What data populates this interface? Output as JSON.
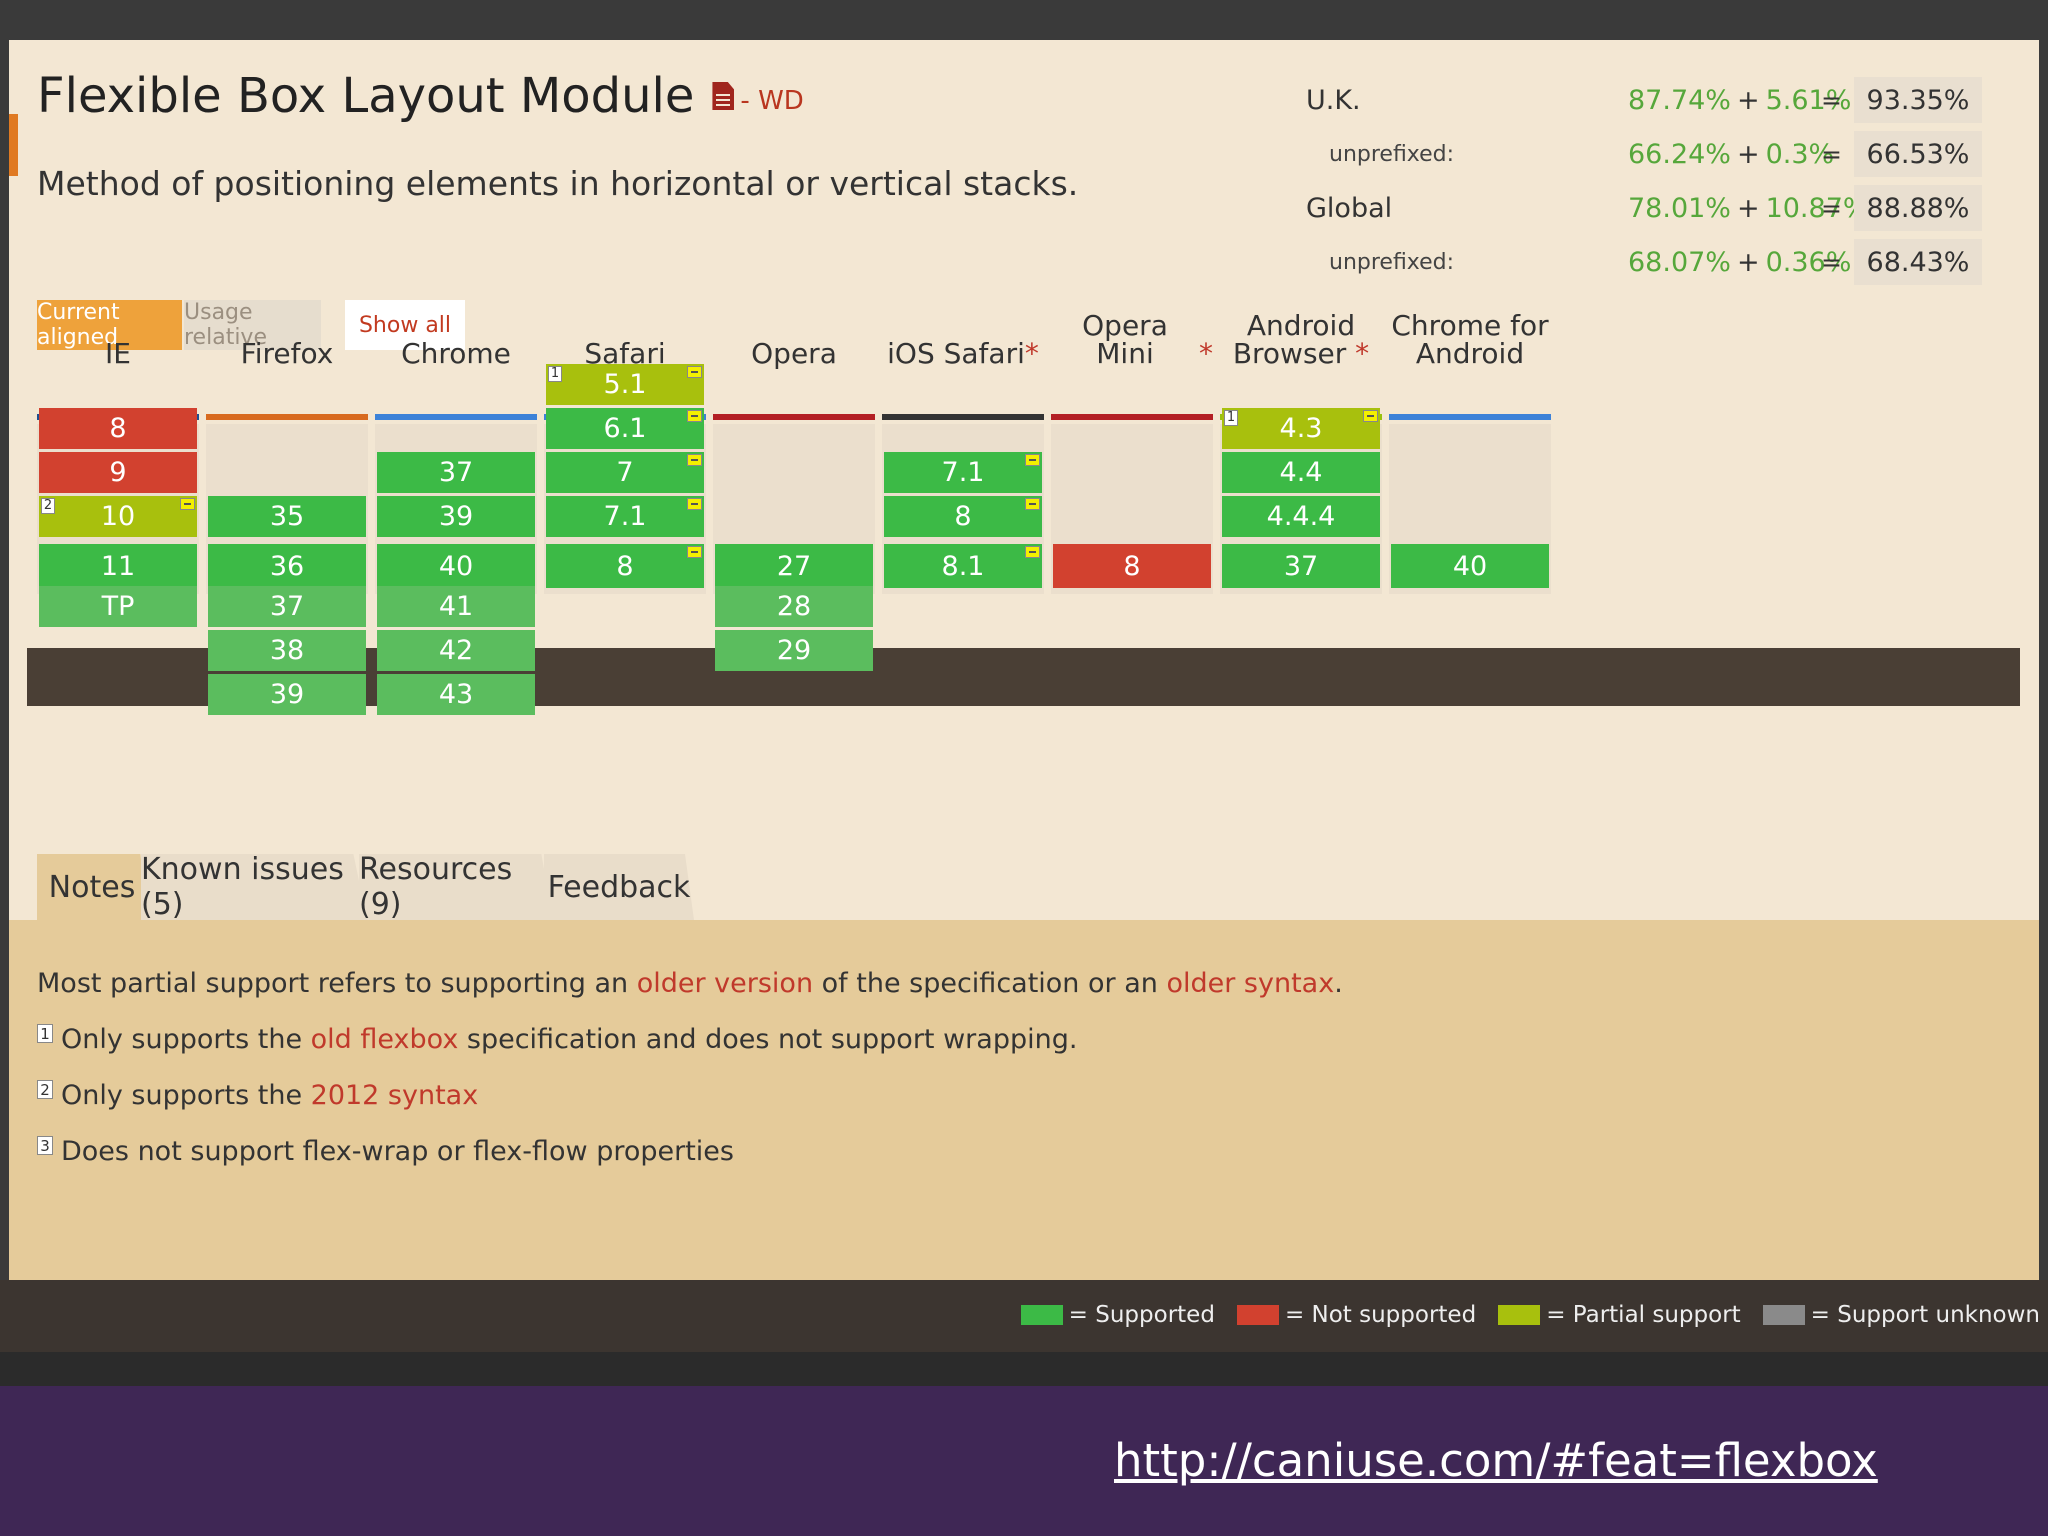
{
  "feature": {
    "title": "Flexible Box Layout Module",
    "status": "- WD",
    "description": "Method of positioning elements in horizontal or vertical stacks."
  },
  "stats": [
    {
      "label": "U.K.",
      "supported": "87.74%",
      "partial": "5.61%",
      "total": "93.35%",
      "sub": false
    },
    {
      "label": "unprefixed:",
      "supported": "66.24%",
      "partial": "0.3%",
      "total": "66.53%",
      "sub": true
    },
    {
      "label": "Global",
      "supported": "78.01%",
      "partial": "10.87%",
      "total": "88.88%",
      "sub": false
    },
    {
      "label": "unprefixed:",
      "supported": "68.07%",
      "partial": "0.36%",
      "total": "68.43%",
      "sub": true
    }
  ],
  "stat_symbols": {
    "plus": "+",
    "equals": "="
  },
  "buttons": {
    "current_aligned": "Current aligned",
    "usage_relative": "Usage relative",
    "show_all": "Show all"
  },
  "colors": {
    "supported": "#3cba46",
    "supported_future": "#5bbd5e",
    "not_supported": "#d2412f",
    "partial": "#a8c00d",
    "unknown": "#8a8a8a"
  },
  "browsers": [
    {
      "name": "IE",
      "star": false,
      "bar_color": "#1d4f91",
      "versions": [
        {
          "v": "8",
          "s": "not_supported",
          "row": 1
        },
        {
          "v": "9",
          "s": "not_supported",
          "row": 2
        },
        {
          "v": "10",
          "s": "partial",
          "row": 3,
          "note": "2",
          "flag": true
        },
        {
          "v": "11",
          "s": "supported",
          "row": 4
        },
        {
          "v": "TP",
          "s": "supported_future",
          "row": 5
        }
      ]
    },
    {
      "name": "Firefox",
      "star": false,
      "bar_color": "#d86a1e",
      "versions": [
        {
          "v": "35",
          "s": "supported",
          "row": 3
        },
        {
          "v": "36",
          "s": "supported",
          "row": 4
        },
        {
          "v": "37",
          "s": "supported_future",
          "row": 5
        },
        {
          "v": "38",
          "s": "supported_future",
          "row": 6
        },
        {
          "v": "39",
          "s": "supported_future",
          "row": 7
        }
      ]
    },
    {
      "name": "Chrome",
      "star": false,
      "bar_color": "#3c82d8",
      "versions": [
        {
          "v": "37",
          "s": "supported",
          "row": 2
        },
        {
          "v": "39",
          "s": "supported",
          "row": 3
        },
        {
          "v": "40",
          "s": "supported",
          "row": 4
        },
        {
          "v": "41",
          "s": "supported_future",
          "row": 5
        },
        {
          "v": "42",
          "s": "supported_future",
          "row": 6
        },
        {
          "v": "43",
          "s": "supported_future",
          "row": 7
        }
      ]
    },
    {
      "name": "Safari",
      "star": false,
      "bar_color": "#3c82d8",
      "versions": [
        {
          "v": "5.1",
          "s": "partial",
          "row": 0,
          "note": "1",
          "flag": true
        },
        {
          "v": "6.1",
          "s": "supported",
          "row": 1,
          "flag": true
        },
        {
          "v": "7",
          "s": "supported",
          "row": 2,
          "flag": true
        },
        {
          "v": "7.1",
          "s": "supported",
          "row": 3,
          "flag": true
        },
        {
          "v": "8",
          "s": "supported",
          "row": 4,
          "flag": true
        }
      ]
    },
    {
      "name": "Opera",
      "star": false,
      "bar_color": "#b31f24",
      "versions": [
        {
          "v": "27",
          "s": "supported",
          "row": 4
        },
        {
          "v": "28",
          "s": "supported_future",
          "row": 5
        },
        {
          "v": "29",
          "s": "supported_future",
          "row": 6
        }
      ]
    },
    {
      "name": "iOS Safari",
      "star": true,
      "bar_color": "#333333",
      "versions": [
        {
          "v": "7.1",
          "s": "supported",
          "row": 2,
          "flag": true
        },
        {
          "v": "8",
          "s": "supported",
          "row": 3,
          "flag": true
        },
        {
          "v": "8.1",
          "s": "supported",
          "row": 4,
          "flag": true
        }
      ]
    },
    {
      "name": "Opera Mini",
      "star": true,
      "bar_color": "#b31f24",
      "versions": [
        {
          "v": "8",
          "s": "not_supported",
          "row": 4
        }
      ]
    },
    {
      "name": "Android Browser",
      "name_lines": [
        "Android",
        "Browser"
      ],
      "star": true,
      "bar_color": "#98c10e",
      "versions": [
        {
          "v": "4.3",
          "s": "partial",
          "row": 1,
          "note": "1",
          "flag": true
        },
        {
          "v": "4.4",
          "s": "supported",
          "row": 2
        },
        {
          "v": "4.4.4",
          "s": "supported",
          "row": 3
        },
        {
          "v": "37",
          "s": "supported",
          "row": 4
        }
      ]
    },
    {
      "name": "Chrome for Android",
      "name_lines": [
        "Chrome for",
        "Android"
      ],
      "star": false,
      "bar_color": "#3c82d8",
      "versions": [
        {
          "v": "40",
          "s": "supported",
          "row": 4
        }
      ]
    }
  ],
  "tabs": [
    {
      "label": "Notes",
      "active": true
    },
    {
      "label": "Known issues (5)",
      "active": false
    },
    {
      "label": "Resources (9)",
      "active": false
    },
    {
      "label": "Feedback",
      "active": false
    }
  ],
  "notes": {
    "intro": {
      "before": "Most partial support refers to supporting an ",
      "link1": "older version",
      "middle": " of the specification or an ",
      "link2": "older syntax",
      "after": "."
    },
    "items": [
      {
        "num": "1",
        "before": "Only supports the ",
        "link": "old flexbox",
        "after": " specification and does not support wrapping."
      },
      {
        "num": "2",
        "before": "Only supports the ",
        "link": "2012 syntax",
        "after": ""
      },
      {
        "num": "3",
        "before": "Does not support flex-wrap or flex-flow properties",
        "link": "",
        "after": ""
      }
    ]
  },
  "legend": [
    {
      "label": "= Supported",
      "color": "#3cba46"
    },
    {
      "label": "= Not supported",
      "color": "#d2412f"
    },
    {
      "label": "= Partial support",
      "color": "#a8c00d"
    },
    {
      "label": "= Support unknown",
      "color": "#8a8a8a"
    }
  ],
  "footer": {
    "url": "http://caniuse.com/#feat=flexbox"
  }
}
